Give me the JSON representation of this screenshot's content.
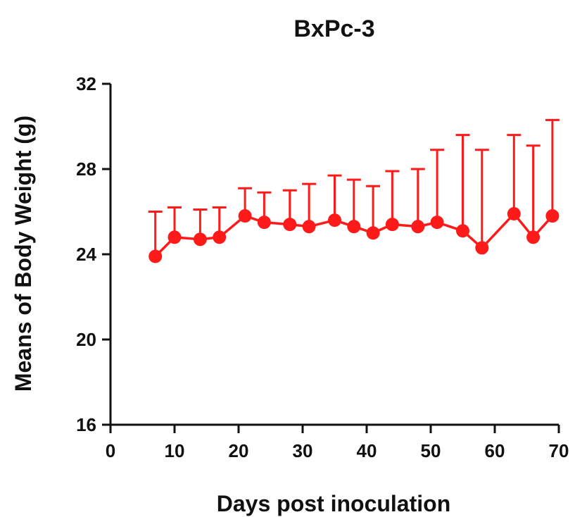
{
  "chart_data": {
    "type": "line",
    "title": "BxPc-3",
    "xlabel": "Days post inoculation",
    "ylabel": "Means of Body Weight (g)",
    "xlim": [
      0,
      70
    ],
    "ylim": [
      16,
      32
    ],
    "xticks": [
      0,
      10,
      20,
      30,
      40,
      50,
      60,
      70
    ],
    "yticks": [
      16,
      20,
      24,
      28,
      32
    ],
    "grid": false,
    "series": [
      {
        "color": "#ff1a1a",
        "x": [
          7,
          10,
          14,
          17,
          21,
          24,
          28,
          31,
          35,
          38,
          41,
          44,
          48,
          51,
          55,
          58,
          63,
          66,
          69
        ],
        "y": [
          23.9,
          24.8,
          24.7,
          24.8,
          25.8,
          25.5,
          25.4,
          25.3,
          25.6,
          25.3,
          25.0,
          25.4,
          25.3,
          25.5,
          25.1,
          24.3,
          25.9,
          24.8,
          25.8
        ],
        "error_upper": [
          26.0,
          26.2,
          26.1,
          26.2,
          27.1,
          26.9,
          27.0,
          27.3,
          27.7,
          27.5,
          27.2,
          27.9,
          28.0,
          28.9,
          29.6,
          28.9,
          29.6,
          29.1,
          30.3
        ]
      }
    ]
  }
}
